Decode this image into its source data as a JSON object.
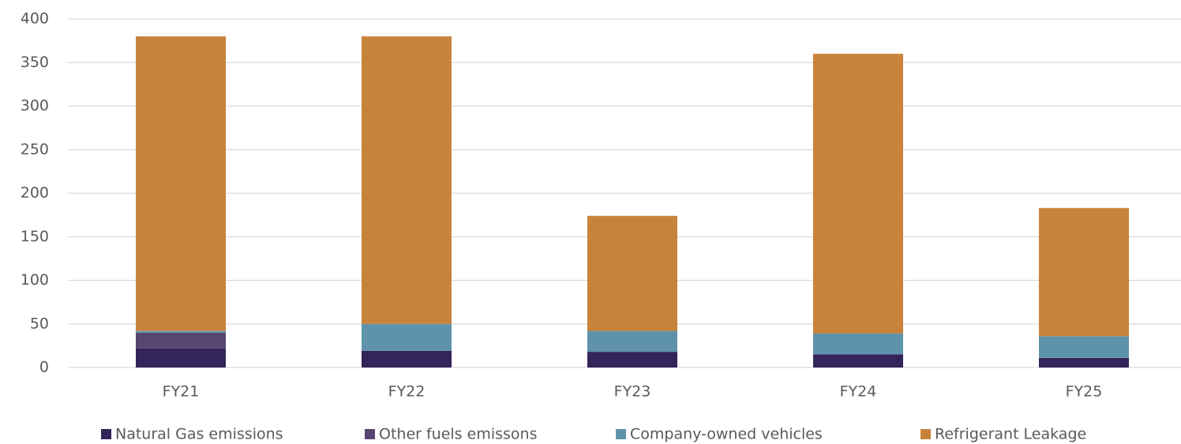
{
  "chart_data": {
    "type": "stacked_bar",
    "categories": [
      "FY21",
      "FY22",
      "FY23",
      "FY24",
      "FY25"
    ],
    "series": [
      {
        "name": "Natural Gas emissions",
        "color": "#33245a",
        "values": [
          22,
          19,
          18,
          15,
          11
        ]
      },
      {
        "name": "Other fuels emissons",
        "color": "#574672",
        "values": [
          18,
          0,
          0,
          0,
          0
        ]
      },
      {
        "name": "Company-owned vehicles",
        "color": "#5f93ab",
        "values": [
          2,
          31,
          24,
          24,
          25
        ]
      },
      {
        "name": "Refrigerant Leakage",
        "color": "#c8833b",
        "values": [
          338,
          330,
          132,
          321,
          147
        ]
      }
    ],
    "ylim": [
      0,
      400
    ],
    "yticks": [
      0,
      50,
      100,
      150,
      200,
      250,
      300,
      350,
      400
    ],
    "grid": true
  }
}
